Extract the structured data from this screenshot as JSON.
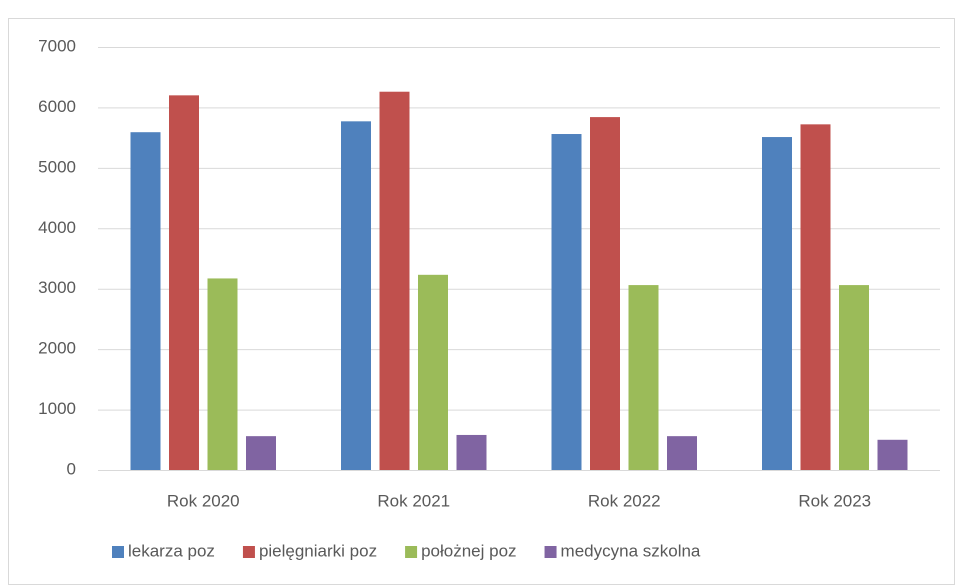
{
  "chart_data": {
    "type": "bar",
    "categories": [
      "Rok 2020",
      "Rok 2021",
      "Rok 2022",
      "Rok 2023"
    ],
    "series": [
      {
        "name": "lekarza poz",
        "color": "#4f81bd",
        "values": [
          5590,
          5770,
          5560,
          5510
        ]
      },
      {
        "name": "pielęgniarki poz",
        "color": "#c0504d",
        "values": [
          6200,
          6260,
          5840,
          5720
        ]
      },
      {
        "name": "położnej poz",
        "color": "#9bbb59",
        "values": [
          3170,
          3230,
          3060,
          3060
        ]
      },
      {
        "name": "medycyna szkolna",
        "color": "#8064a2",
        "values": [
          560,
          580,
          560,
          500
        ]
      }
    ],
    "ylim": [
      0,
      7000
    ],
    "yticks": [
      0,
      1000,
      2000,
      3000,
      4000,
      5000,
      6000,
      7000
    ],
    "grid": true,
    "legend": "bottom"
  }
}
